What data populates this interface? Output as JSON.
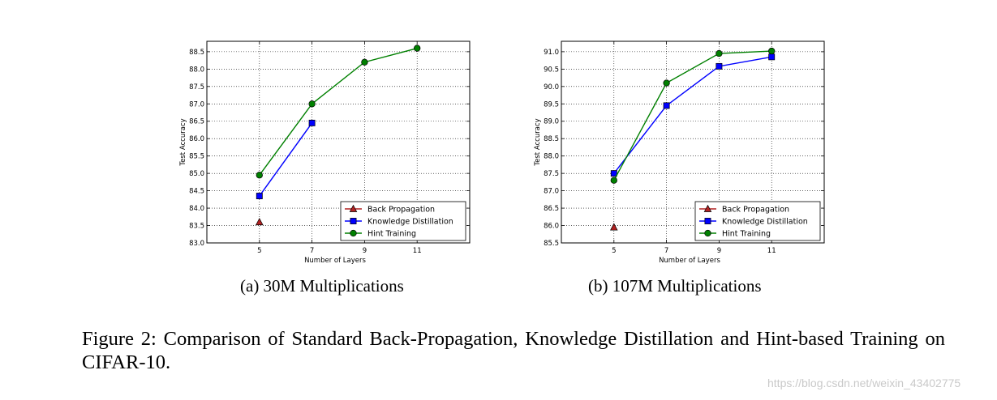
{
  "chart_data": [
    {
      "type": "line",
      "title": "",
      "xlabel": "Number of Layers",
      "ylabel": "Test Accuracy",
      "xlim": [
        3,
        13
      ],
      "ylim": [
        83.0,
        88.8
      ],
      "xticks": [
        5,
        7,
        9,
        11
      ],
      "xtick_labels": [
        "5",
        "7",
        "9",
        "11"
      ],
      "yticks": [
        83.0,
        83.5,
        84.0,
        84.5,
        85.0,
        85.5,
        86.0,
        86.5,
        87.0,
        87.5,
        88.0,
        88.5
      ],
      "ytick_labels": [
        "83.0",
        "83.5",
        "84.0",
        "84.5",
        "85.0",
        "85.5",
        "86.0",
        "86.5",
        "87.0",
        "87.5",
        "88.0",
        "88.5"
      ],
      "grid": true,
      "legend_position": "bottom-right",
      "series": [
        {
          "name": "Back Propagation",
          "color": "#b22222",
          "marker": "triangle",
          "x": [
            5
          ],
          "y": [
            83.6
          ]
        },
        {
          "name": "Knowledge Distillation",
          "color": "#0000ff",
          "marker": "square",
          "x": [
            5,
            7
          ],
          "y": [
            84.35,
            86.45
          ]
        },
        {
          "name": "Hint Training",
          "color": "#008000",
          "marker": "circle",
          "x": [
            5,
            7,
            9,
            11
          ],
          "y": [
            84.95,
            87.0,
            88.2,
            88.6
          ]
        }
      ]
    },
    {
      "type": "line",
      "title": "",
      "xlabel": "Number of Layers",
      "ylabel": "Test Accuracy",
      "xlim": [
        3,
        13
      ],
      "ylim": [
        85.5,
        91.3
      ],
      "xticks": [
        5,
        7,
        9,
        11
      ],
      "xtick_labels": [
        "5",
        "7",
        "9",
        "11"
      ],
      "yticks": [
        85.5,
        86.0,
        86.5,
        87.0,
        87.5,
        88.0,
        88.5,
        89.0,
        89.5,
        90.0,
        90.5,
        91.0
      ],
      "ytick_labels": [
        "85.5",
        "86.0",
        "86.5",
        "87.0",
        "87.5",
        "88.0",
        "88.5",
        "89.0",
        "89.5",
        "90.0",
        "90.5",
        "91.0"
      ],
      "grid": true,
      "legend_position": "bottom-right",
      "series": [
        {
          "name": "Back Propagation",
          "color": "#b22222",
          "marker": "triangle",
          "x": [
            5
          ],
          "y": [
            85.95
          ]
        },
        {
          "name": "Knowledge Distillation",
          "color": "#0000ff",
          "marker": "square",
          "x": [
            5,
            7,
            9,
            11
          ],
          "y": [
            87.5,
            89.45,
            90.58,
            90.85
          ]
        },
        {
          "name": "Hint Training",
          "color": "#008000",
          "marker": "circle",
          "x": [
            5,
            7,
            9,
            11
          ],
          "y": [
            87.3,
            90.1,
            90.95,
            91.02
          ]
        }
      ]
    }
  ],
  "captions": {
    "a": "(a)  30M Multiplications",
    "b": "(b)  107M Multiplications",
    "figure": "Figure 2: Comparison of Standard Back-Propagation, Knowledge Distillation and Hint-based Training on CIFAR-10."
  },
  "watermark": "https://blog.csdn.net/weixin_43402775"
}
